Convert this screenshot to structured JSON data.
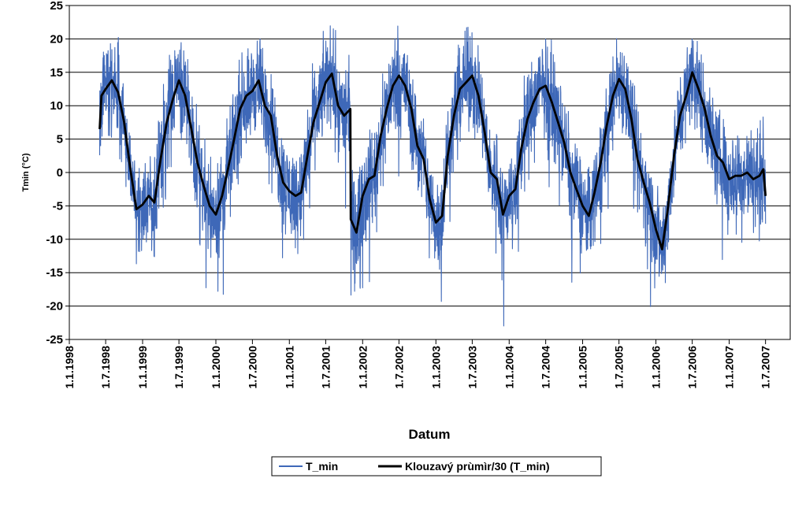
{
  "chart_data": {
    "type": "line",
    "xlabel": "Datum",
    "ylabel": "Tmin (°C)",
    "ylim": [
      -25,
      25
    ],
    "yticks": [
      25,
      20,
      15,
      10,
      5,
      0,
      -5,
      -10,
      -15,
      -20,
      -25
    ],
    "xlim": [
      "1998-01-01",
      "2007-11-01"
    ],
    "xticks": [
      "1.1.1998",
      "1.7.1998",
      "1.1.1999",
      "1.7.1999",
      "1.1.2000",
      "1.7.2000",
      "1.1.2001",
      "1.7.2001",
      "1.1.2002",
      "1.7.2002",
      "1.1.2003",
      "1.7.2003",
      "1.1.2004",
      "1.7.2004",
      "1.1.2005",
      "1.7.2005",
      "1.1.2006",
      "1.7.2006",
      "1.1.2007",
      "1.7.2007"
    ],
    "grid": {
      "horizontal": true,
      "vertical": false
    },
    "legend": {
      "position": "bottom"
    },
    "series": [
      {
        "name": "T_min",
        "color": "#3E68B8",
        "kind": "daily noisy temperature"
      },
      {
        "name": "Klouzavý prùmìr/30 (T_min)",
        "color": "#000000",
        "kind": "30-day moving average",
        "x": [
          "1998-06-01",
          "1998-06-10",
          "1998-07-01",
          "1998-08-01",
          "1998-09-01",
          "1998-10-01",
          "1998-11-01",
          "1998-12-01",
          "1999-01-01",
          "1999-02-01",
          "1999-03-01",
          "1999-04-01",
          "1999-05-01",
          "1999-06-01",
          "1999-07-01",
          "1999-08-01",
          "1999-09-01",
          "1999-10-01",
          "1999-11-01",
          "1999-12-01",
          "2000-01-01",
          "2000-02-01",
          "2000-03-01",
          "2000-04-01",
          "2000-05-01",
          "2000-06-01",
          "2000-07-01",
          "2000-08-01",
          "2000-09-01",
          "2000-10-01",
          "2000-11-01",
          "2000-12-01",
          "2001-01-01",
          "2001-02-01",
          "2001-03-01",
          "2001-04-01",
          "2001-05-01",
          "2001-06-01",
          "2001-07-01",
          "2001-08-01",
          "2001-09-01",
          "2001-10-01",
          "2001-11-01",
          "2001-11-03",
          "2001-12-01",
          "2002-01-01",
          "2002-02-01",
          "2002-03-01",
          "2002-04-01",
          "2002-05-01",
          "2002-06-01",
          "2002-07-01",
          "2002-08-01",
          "2002-09-01",
          "2002-10-01",
          "2002-11-01",
          "2002-12-01",
          "2003-01-01",
          "2003-02-01",
          "2003-03-01",
          "2003-04-01",
          "2003-05-01",
          "2003-06-01",
          "2003-07-01",
          "2003-08-01",
          "2003-09-01",
          "2003-10-01",
          "2003-11-01",
          "2003-12-01",
          "2004-01-01",
          "2004-02-01",
          "2004-03-01",
          "2004-04-01",
          "2004-05-01",
          "2004-06-01",
          "2004-07-01",
          "2004-08-01",
          "2004-09-01",
          "2004-10-01",
          "2004-11-01",
          "2004-12-01",
          "2005-01-01",
          "2005-02-01",
          "2005-03-01",
          "2005-04-01",
          "2005-05-01",
          "2005-06-01",
          "2005-07-01",
          "2005-08-01",
          "2005-09-01",
          "2005-10-01",
          "2005-11-01",
          "2005-12-01",
          "2006-01-01",
          "2006-02-01",
          "2006-03-01",
          "2006-04-01",
          "2006-05-01",
          "2006-06-01",
          "2006-07-01",
          "2006-08-01",
          "2006-09-01",
          "2006-10-01",
          "2006-11-01",
          "2006-12-01",
          "2007-01-01",
          "2007-02-01",
          "2007-03-01",
          "2007-04-01",
          "2007-05-01",
          "2007-06-01",
          "2007-06-20",
          "2007-07-01"
        ],
        "y": [
          6.5,
          11.5,
          12.5,
          13.8,
          12.0,
          7.5,
          0.5,
          -5.5,
          -4.8,
          -3.5,
          -4.5,
          2.0,
          7.5,
          11.0,
          13.8,
          11.5,
          6.5,
          1.5,
          -2.0,
          -5.0,
          -6.3,
          -3.5,
          0.5,
          5.0,
          9.5,
          11.5,
          12.2,
          13.8,
          10.0,
          8.5,
          2.5,
          -1.5,
          -2.8,
          -3.5,
          -3.0,
          2.5,
          7.5,
          10.5,
          13.5,
          14.8,
          10.0,
          8.5,
          9.5,
          -7.0,
          -9.0,
          -3.5,
          -1.0,
          -0.5,
          5.5,
          9.5,
          13.0,
          14.5,
          13.0,
          9.5,
          4.0,
          2.0,
          -4.0,
          -7.5,
          -6.5,
          2.5,
          8.5,
          12.5,
          13.5,
          14.5,
          11.5,
          6.0,
          0.0,
          -1.0,
          -6.3,
          -3.5,
          -2.5,
          3.5,
          8.0,
          10.5,
          12.5,
          13.0,
          10.5,
          7.5,
          4.5,
          0.0,
          -2.5,
          -5.0,
          -6.5,
          -3.0,
          1.5,
          7.0,
          11.5,
          14.0,
          12.5,
          8.0,
          2.0,
          -1.5,
          -4.5,
          -8.5,
          -11.5,
          -5.5,
          2.5,
          8.5,
          11.5,
          15.0,
          12.5,
          9.5,
          5.5,
          2.5,
          1.5,
          -1.0,
          -0.5,
          -0.5,
          0.0,
          -1.0,
          -0.5,
          0.5,
          -3.5
        ]
      }
    ]
  }
}
